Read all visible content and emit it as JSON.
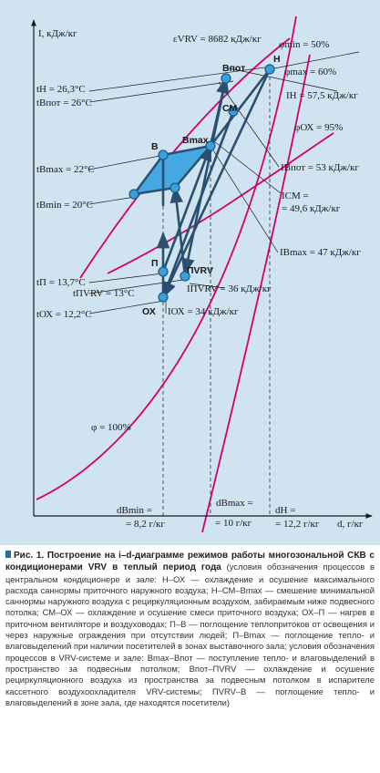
{
  "diagram": {
    "y_axis_label": "I, кДж/кг",
    "x_axis_label": "d, г/кг",
    "phi_min": "φmin = 50%",
    "phi_max": "φmax = 60%",
    "phi_ox": "φОХ = 95%",
    "phi_100": "φ = 100%",
    "epsilon": "εVRV = 8682 кДж/кг",
    "points": {
      "N": "Н",
      "Bpot": "Впот",
      "SM": "СМ",
      "B": "В",
      "Bmax": "Вmax",
      "P": "П",
      "PVRV": "ПVRV",
      "OX": "ОХ"
    },
    "left_labels": [
      "tН = 26,3°С",
      "tВпот = 26°С",
      "tВmax = 22°С",
      "tВmin = 20°С",
      "tП = 13,7°С",
      "tПVRV = 13°С",
      "tОХ = 12,2°С"
    ],
    "right_labels": [
      "IН = 57,5 кДж/кг",
      "IВпот = 53 кДж/кг",
      "IСМ =",
      "= 49,6 кДж/кг",
      "IВmax = 47 кДж/кг",
      "IПVRV = 36 кДж/кг",
      "IОХ = 34 кДж/кг"
    ],
    "bottom_labels": [
      {
        "line1": "dВmin =",
        "line2": "= 8,2 г/кг"
      },
      {
        "line1": "dВmax =",
        "line2": "= 10 г/кг"
      },
      {
        "line1": "dН =",
        "line2": "= 12,2 г/кг"
      }
    ]
  },
  "caption": {
    "title": "Рис. 1. Построение на i–d-диаграмме режимов работы многозональной СКВ с кондиционерами VRV в теплый период года",
    "body": " (условия обозначения процессов в центральном кондиционере и зале: Н–ОХ — охлаждение и осушение максимального расхода саннормы приточного наружного воздуха; Н–СМ–Вmax — смешение минимальной саннормы наружного воздуха с рециркуляционным воздухом, забираемым ниже подвесного потолка; СМ–ОХ — охлаждение и осушение смеси приточного воздуха; ОХ–П — нагрев в приточном вентиляторе и воздуховодах; П–В — поглощение теплопритоков от освещения и через наружные ограждения при отсутствии людей; П–Вmax — поглощение тепло- и влаговыделений при наличии посетителей в зонах выставочного зала; условия обозначения процессов в VRV-системе и зале: Вmax–Впот — поступление тепло- и влаговыделений в пространство за подвесным потолком; Впот–ПVRV — охлаждение и осушение рециркуляционного воздуха из пространства за подвесным потолком в испарителе кассетного воздухоохладителя VRV-системы; ПVRV–В — поглощение тепло- и влаговыделений в зоне зала, где находятся посетители)"
  },
  "colors": {
    "panel_bg": "#cfe3f0",
    "curve": "#d4006f",
    "process": "#2b4f6e",
    "zone_fill": "#46a8e0",
    "point_fill": "#3aa0dd"
  }
}
